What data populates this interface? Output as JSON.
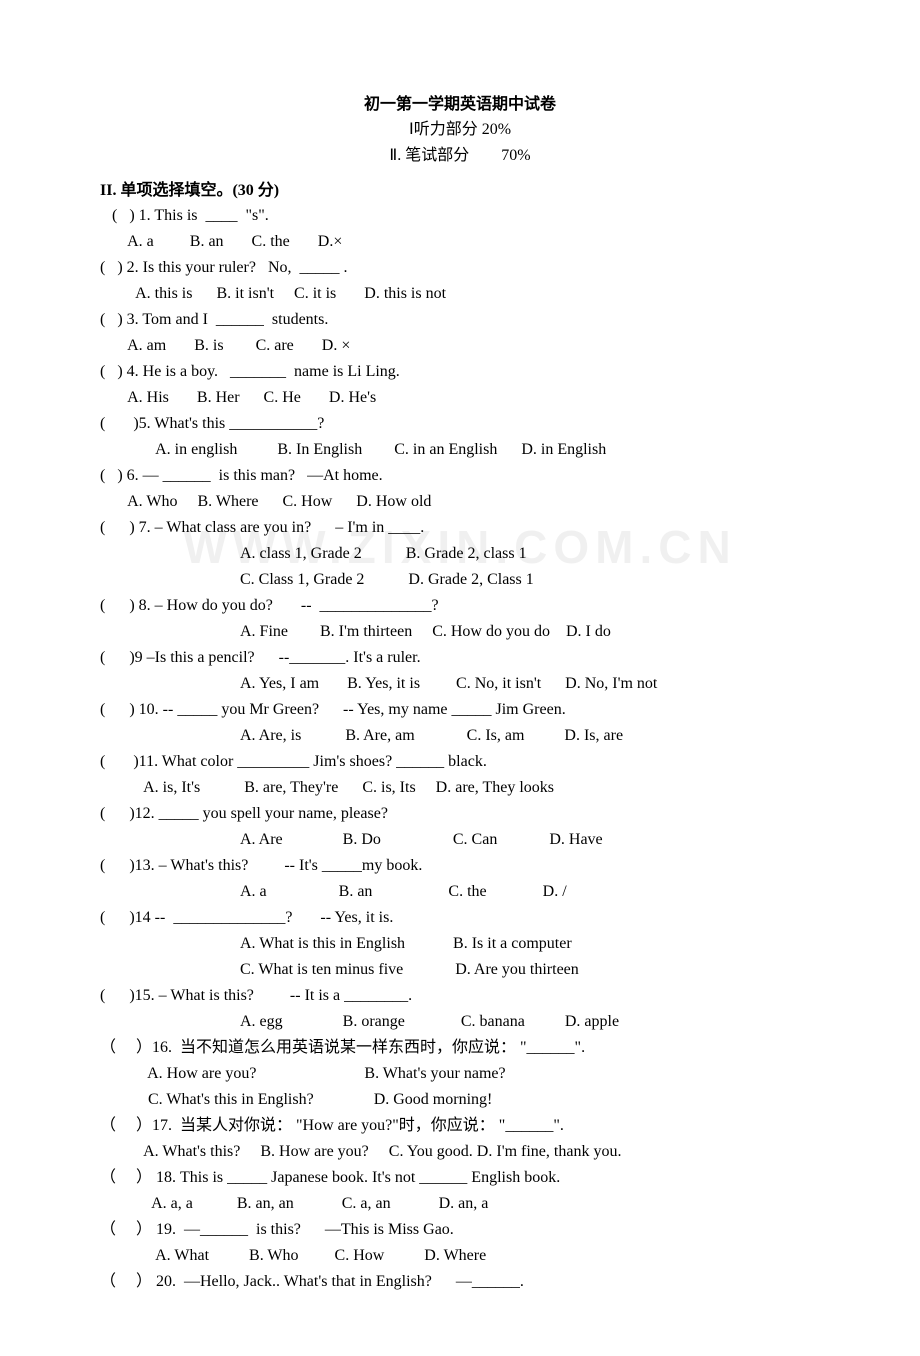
{
  "header": {
    "title": "初一第一学期英语期中试卷",
    "part1": "Ⅰ听力部分 20%",
    "part2_left": "Ⅱ. 笔试部分",
    "part2_right": "70%"
  },
  "section": {
    "title": "II.  单项选择填空。(30 分)"
  },
  "watermark": "WWW.ZIXIN.COM.CN",
  "q": {
    "1": {
      "stem_a": "   (   ) 1. This is  ____  \"s\".",
      "opts": "       A. a         B. an       C. the       D.×"
    },
    "2": {
      "stem": "(   ) 2. Is this your ruler?   No,  _____ .",
      "opts": "         A. this is      B. it isn't     C. it is       D. this is not"
    },
    "3": {
      "stem": "(   ) 3. Tom and I  ______  students.",
      "opts": "       A. am       B. is        C. are       D. ×"
    },
    "4": {
      "stem": "(   ) 4. He is a boy.   _______  name is Li Ling.",
      "opts": "       A. His       B. Her      C. He       D. He's"
    },
    "5": {
      "stem": "(       )5. What's this ___________?",
      "opts": "              A. in english          B. In English        C. in an English      D. in English"
    },
    "6": {
      "stem": "(   ) 6. — ______  is this man?   —At home.",
      "opts": "       A. Who     B. Where      C. How      D. How old"
    },
    "7": {
      "stem": "(      ) 7. – What class are you in?      – I'm in ____.",
      "opts1": "A. class 1, Grade 2           B. Grade 2, class 1",
      "opts2": "C. Class 1, Grade 2           D. Grade 2, Class 1"
    },
    "8": {
      "stem": "(      ) 8. – How do you do?       --  ______________?",
      "opts": "A. Fine        B. I'm thirteen     C. How do you do    D. I do"
    },
    "9": {
      "stem": "(      )9 –Is this a pencil?      --_______. It's a ruler.",
      "opts": "A. Yes, I am       B. Yes, it is         C. No, it isn't      D. No, I'm not"
    },
    "10": {
      "stem": "(      ) 10. -- _____ you Mr Green?      -- Yes, my name _____ Jim Green.",
      "opts": "A. Are, is           B. Are, am             C. Is, am          D. Is, are"
    },
    "11": {
      "stem": "(       )11. What color _________ Jim's shoes? ______ black.",
      "opts": "           A. is, It's           B. are, They're      C. is, Its     D. are, They looks"
    },
    "12": {
      "stem": "(      )12. _____ you spell your name, please?",
      "opts": "A. Are               B. Do                  C. Can             D. Have"
    },
    "13": {
      "stem": "(      )13. – What's this?         -- It's _____my book.",
      "opts": "A. a                  B. an                   C. the              D. /"
    },
    "14": {
      "stem": "(      )14 --  ______________?       -- Yes, it is.",
      "opts1": "A. What is this in English            B. Is it a computer",
      "opts2": "C. What is ten minus five             D. Are you thirteen"
    },
    "15": {
      "stem": "(      )15. – What is this?         -- It is a ________.",
      "opts": "A. egg               B. orange              C. banana          D. apple"
    },
    "16": {
      "stem": "（     ）16.  当不知道怎么用英语说某一样东西时，你应说： \"______\".",
      "opts1": "            A. How are you?                           B. What's your name?",
      "opts2": "            C. What's this in English?               D. Good morning!"
    },
    "17": {
      "stem": "（     ）17.  当某人对你说： \"How are you?\"时，你应说： \"______\".",
      "opts": "           A. What's this?     B. How are you?     C. You good. D. I'm fine, thank you."
    },
    "18": {
      "stem": "（     ） 18. This is _____ Japanese book. It's not ______ English book.",
      "opts": "             A. a, a           B. an, an            C. a, an            D. an, a"
    },
    "19": {
      "stem": "（     ） 19.  —______  is this?      —This is Miss Gao.",
      "opts": "              A. What          B. Who         C. How          D. Where"
    },
    "20": {
      "stem": "（     ） 20.  —Hello, Jack.. What's that in English?      —______."
    }
  }
}
